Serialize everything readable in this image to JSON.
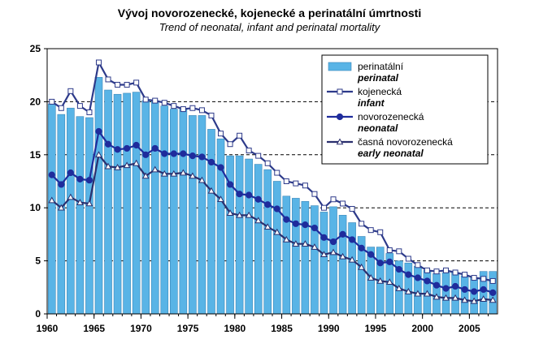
{
  "chart_data": {
    "type": "bar",
    "title": "Vývoj novorozenecké, kojenecké a perinatální úmrtnosti",
    "subtitle": "Trend of neonatal, infant and perinatal mortality",
    "xlabel": "",
    "ylabel": "",
    "xlim": [
      1960,
      2007
    ],
    "ylim": [
      0,
      25
    ],
    "yticks": [
      "0",
      "5",
      "10",
      "15",
      "20",
      "25"
    ],
    "xticks": [
      "1960",
      "1965",
      "1970",
      "1975",
      "1980",
      "1985",
      "1990",
      "1995",
      "2000",
      "2005"
    ],
    "grid": "horizontal dashed",
    "legend_position": "top-right",
    "x": [
      1960,
      1961,
      1962,
      1963,
      1964,
      1965,
      1966,
      1967,
      1968,
      1969,
      1970,
      1971,
      1972,
      1973,
      1974,
      1975,
      1976,
      1977,
      1978,
      1979,
      1980,
      1981,
      1982,
      1983,
      1984,
      1985,
      1986,
      1987,
      1988,
      1989,
      1990,
      1991,
      1992,
      1993,
      1994,
      1995,
      1996,
      1997,
      1998,
      1999,
      2000,
      2001,
      2002,
      2003,
      2004,
      2005,
      2006,
      2007
    ],
    "series": [
      {
        "name": "perinatální",
        "name_en": "perinatal",
        "kind": "bar",
        "values": [
          19.8,
          18.8,
          19.4,
          18.6,
          18.5,
          22.3,
          21.1,
          20.7,
          20.8,
          20.9,
          20.1,
          20.1,
          19.6,
          19.3,
          19.3,
          18.7,
          18.7,
          17.4,
          16.5,
          14.9,
          14.9,
          14.6,
          14.1,
          13.6,
          12.5,
          11.1,
          10.9,
          10.6,
          10.2,
          9.6,
          10.1,
          9.3,
          8.6,
          7.3,
          6.3,
          6.3,
          5.7,
          5.0,
          4.8,
          4.5,
          4.1,
          3.8,
          3.9,
          3.9,
          3.6,
          3.4,
          4.0,
          4.0
        ],
        "fill": "#59b4e6",
        "stroke": "#3a86b8"
      },
      {
        "name": "kojenecká",
        "name_en": "infant",
        "kind": "line",
        "marker": "square-open",
        "values": [
          20.0,
          19.4,
          21.0,
          19.6,
          19.0,
          23.7,
          22.1,
          21.6,
          21.6,
          21.8,
          20.2,
          20.1,
          19.9,
          19.6,
          19.3,
          19.4,
          19.2,
          18.7,
          17.0,
          16.0,
          16.8,
          15.4,
          14.9,
          14.2,
          13.3,
          12.5,
          12.3,
          12.1,
          11.3,
          10.0,
          10.8,
          10.4,
          9.9,
          8.5,
          7.9,
          7.7,
          6.0,
          5.9,
          5.2,
          4.6,
          4.1,
          4.0,
          4.1,
          3.9,
          3.7,
          3.4,
          3.3,
          3.1
        ],
        "color": "#2d3a8a"
      },
      {
        "name": "novorozenecká",
        "name_en": "neonatal",
        "kind": "line",
        "marker": "circle-filled",
        "values": [
          13.1,
          12.2,
          13.3,
          12.7,
          12.6,
          17.2,
          16.0,
          15.5,
          15.6,
          15.9,
          15.0,
          15.6,
          15.1,
          15.1,
          15.1,
          14.9,
          14.8,
          14.3,
          13.8,
          12.2,
          11.3,
          11.2,
          10.8,
          10.3,
          9.9,
          8.9,
          8.5,
          8.4,
          8.1,
          7.2,
          6.8,
          7.5,
          7.0,
          6.2,
          5.6,
          4.8,
          4.9,
          4.2,
          3.7,
          3.4,
          3.1,
          2.7,
          2.4,
          2.6,
          2.3,
          2.1,
          2.3,
          2.0
        ],
        "color": "#1f2c9c"
      },
      {
        "name": "časná novorozenecká",
        "name_en": "early neonatal",
        "kind": "line",
        "marker": "triangle-open",
        "values": [
          10.7,
          10.0,
          11.0,
          10.5,
          10.4,
          15.0,
          13.9,
          13.8,
          14.0,
          14.2,
          13.0,
          13.6,
          13.2,
          13.2,
          13.3,
          13.0,
          12.6,
          11.6,
          10.8,
          9.5,
          9.3,
          9.3,
          8.8,
          8.2,
          7.7,
          7.0,
          6.6,
          6.6,
          6.3,
          5.6,
          5.8,
          5.4,
          5.1,
          4.4,
          3.4,
          3.1,
          3.0,
          2.4,
          2.1,
          1.9,
          1.9,
          1.6,
          1.5,
          1.5,
          1.3,
          1.2,
          1.4,
          1.3
        ],
        "color": "#2a2f6e"
      }
    ]
  }
}
